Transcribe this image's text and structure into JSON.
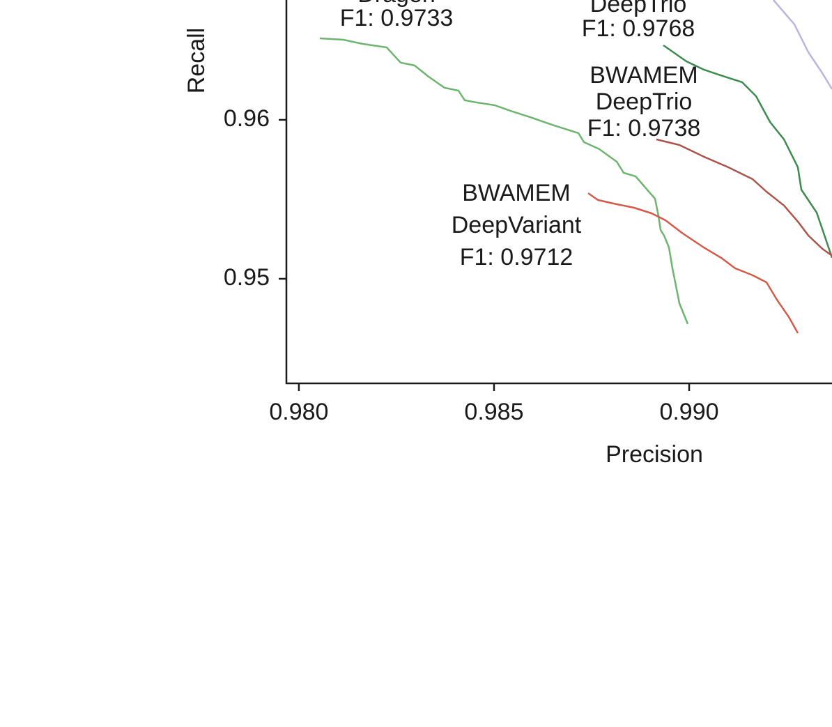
{
  "chart_data": {
    "type": "line",
    "x_label": "Precision",
    "y_label": "Recall",
    "xlim": [
      0.97968,
      0.99366
    ],
    "ylim": [
      0.94342,
      0.96754
    ],
    "xticks": [
      {
        "value": 0.98,
        "label": "0.980"
      },
      {
        "value": 0.985,
        "label": "0.985"
      },
      {
        "value": 0.99,
        "label": "0.990"
      }
    ],
    "yticks": [
      0.95,
      0.96
    ],
    "series": [
      {
        "color": "#6db56f",
        "x": [
          0.980536,
          0.981143,
          0.981625,
          0.98225,
          0.982607,
          0.982964,
          0.983321,
          0.983732,
          0.984089,
          0.98425,
          0.984536,
          0.985018,
          0.985464,
          0.985911,
          0.986536,
          0.987161,
          0.987304,
          0.987696,
          0.987964,
          0.988143,
          0.988321,
          0.988625,
          0.988768,
          0.988982,
          0.989125,
          0.989214,
          0.989268,
          0.989357,
          0.989482,
          0.989571,
          0.989661,
          0.98975,
          0.989964
        ],
        "values": [
          0.96513,
          0.96504,
          0.96478,
          0.96456,
          0.9636,
          0.96342,
          0.96272,
          0.96202,
          0.96184,
          0.96123,
          0.9611,
          0.96092,
          0.96053,
          0.96018,
          0.95965,
          0.95917,
          0.9586,
          0.95816,
          0.95768,
          0.95737,
          0.95667,
          0.95645,
          0.95605,
          0.95544,
          0.95504,
          0.95395,
          0.95307,
          0.95272,
          0.95197,
          0.95066,
          0.94956,
          0.94846,
          0.94715
        ]
      },
      {
        "color": "#3f8a4e",
        "x": [
          0.989339,
          0.989929,
          0.990375,
          0.990911,
          0.991357,
          0.991714,
          0.992071,
          0.992429,
          0.992786,
          0.992875,
          0.993268,
          0.993661
        ],
        "values": [
          0.96469,
          0.96368,
          0.96316,
          0.96272,
          0.96237,
          0.96149,
          0.95987,
          0.95877,
          0.95702,
          0.95561,
          0.95417,
          0.95132
        ]
      },
      {
        "color": "#a9554a",
        "x": [
          0.989161,
          0.98975,
          0.990375,
          0.991,
          0.991625,
          0.991982,
          0.992429,
          0.992786,
          0.993054,
          0.993411,
          0.993661
        ],
        "values": [
          0.95877,
          0.95842,
          0.95768,
          0.95702,
          0.95627,
          0.95548,
          0.95461,
          0.9536,
          0.95272,
          0.95189,
          0.95145
        ]
      },
      {
        "color": "#cf5b4b",
        "x": [
          0.987411,
          0.987661,
          0.988054,
          0.988589,
          0.989036,
          0.989393,
          0.989839,
          0.990375,
          0.990821,
          0.991179,
          0.991625,
          0.991982,
          0.99225,
          0.992554,
          0.992786
        ],
        "values": [
          0.95539,
          0.95496,
          0.95474,
          0.95447,
          0.95412,
          0.95368,
          0.95285,
          0.95197,
          0.95132,
          0.95066,
          0.95022,
          0.94978,
          0.94868,
          0.94759,
          0.94658
        ]
      },
      {
        "color": "#b9b5e0",
        "x": [
          0.992161,
          0.992696,
          0.993054,
          0.993411,
          0.993661
        ],
        "values": [
          0.96754,
          0.96601,
          0.96425,
          0.96294,
          0.96193
        ]
      }
    ],
    "annotations": [
      {
        "text": [
          "Dragen",
          "F1: 0.9733"
        ]
      },
      {
        "text": [
          "DeepTrio",
          "F1: 0.9768"
        ]
      },
      {
        "text": [
          "BWAMEM",
          "DeepTrio",
          "F1: 0.9738"
        ]
      },
      {
        "text": [
          "BWAMEM",
          "DeepVariant",
          "F1: 0.9712"
        ]
      }
    ]
  }
}
